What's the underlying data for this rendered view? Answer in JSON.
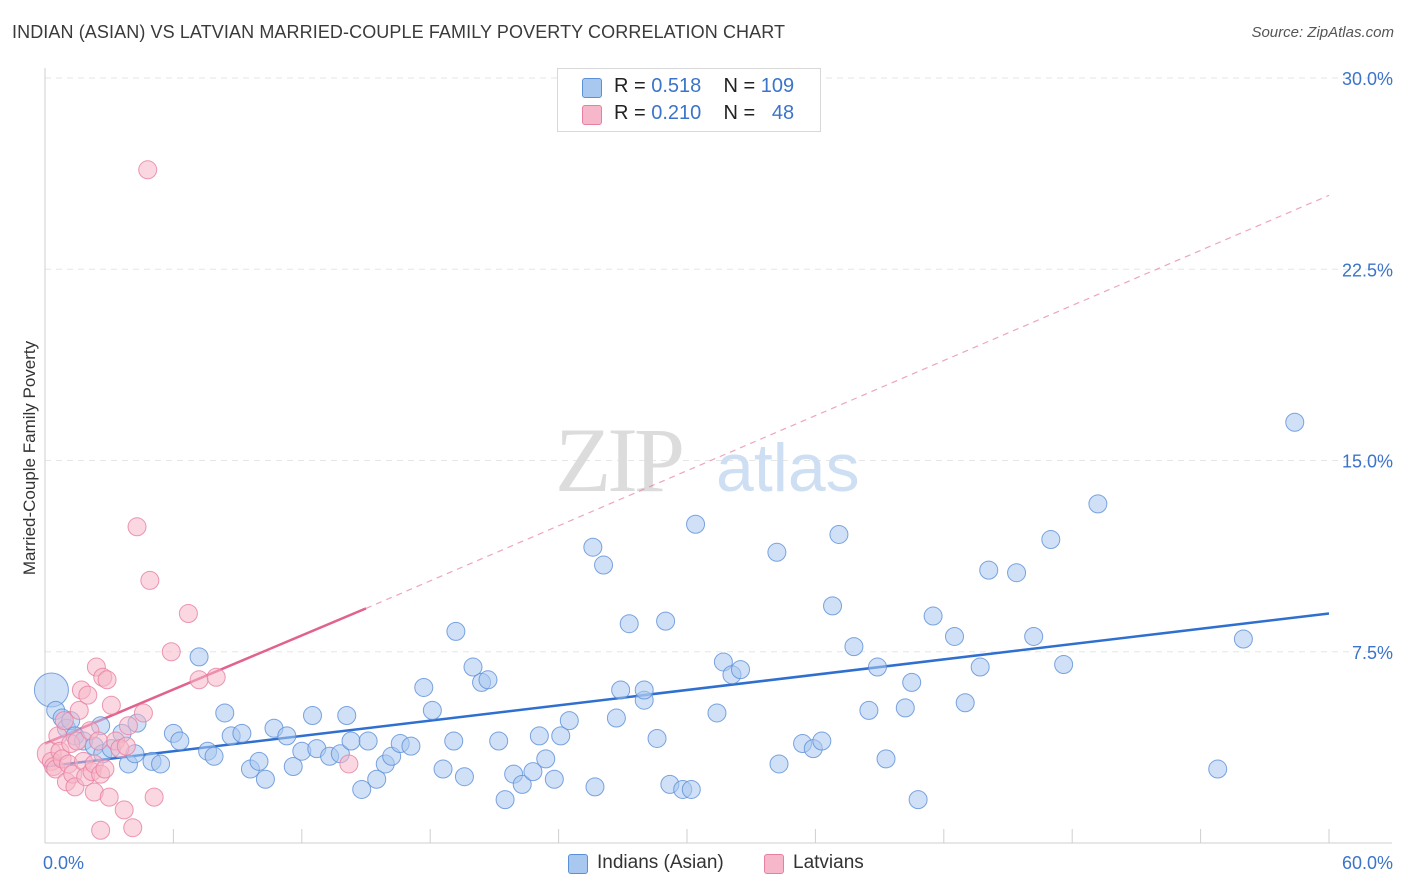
{
  "header": {
    "title": "INDIAN (ASIAN) VS LATVIAN MARRIED-COUPLE FAMILY POVERTY CORRELATION CHART",
    "source": "Source: ZipAtlas.com"
  },
  "watermark": {
    "zip": "ZIP",
    "atlas": "atlas"
  },
  "legend": {
    "rows": [
      {
        "r_label": "R =",
        "r_value": "0.518",
        "n_label": "N =",
        "n_value": "109"
      },
      {
        "r_label": "R =",
        "r_value": "0.210",
        "n_label": "N =",
        "n_value": "48"
      }
    ]
  },
  "bottom_legend": {
    "series1": "Indians (Asian)",
    "series2": "Latvians"
  },
  "colors": {
    "blue_fill": "#a9c8f0",
    "blue_stroke": "#5b8fd8",
    "blue_line": "#2f6fcf",
    "pink_fill": "#f5b7c9",
    "pink_stroke": "#e77fa0",
    "pink_line": "#e0628d",
    "axis_label": "#3b74c9",
    "grid": "#e6e6e6"
  },
  "chart_data": {
    "type": "scatter",
    "title": "INDIAN (ASIAN) VS LATVIAN MARRIED-COUPLE FAMILY POVERTY CORRELATION CHART",
    "xlabel": "",
    "ylabel": "Married-Couple Family Poverty",
    "xlim": [
      0,
      60
    ],
    "ylim": [
      0,
      30
    ],
    "x_tick_labels": [
      "0.0%",
      "60.0%"
    ],
    "y_tick_labels": [
      "7.5%",
      "15.0%",
      "22.5%",
      "30.0%"
    ],
    "y_ticks": [
      7.5,
      15,
      22.5,
      30
    ],
    "grid": true,
    "legend_position": "top-center",
    "series": [
      {
        "name": "Indians (Asian)",
        "r": 0.518,
        "n": 109,
        "trend": {
          "x": [
            0,
            60
          ],
          "y": [
            3.0,
            9.0
          ]
        },
        "points": [
          [
            0.3,
            6.0
          ],
          [
            0.5,
            5.2
          ],
          [
            0.8,
            4.9
          ],
          [
            1.0,
            4.5
          ],
          [
            1.2,
            4.8
          ],
          [
            1.4,
            4.2
          ],
          [
            1.8,
            4.0
          ],
          [
            2.3,
            3.8
          ],
          [
            2.6,
            4.6
          ],
          [
            2.7,
            3.5
          ],
          [
            3.1,
            3.7
          ],
          [
            3.6,
            4.3
          ],
          [
            3.9,
            3.1
          ],
          [
            4.2,
            3.5
          ],
          [
            4.3,
            4.7
          ],
          [
            5.0,
            3.2
          ],
          [
            5.4,
            3.1
          ],
          [
            6.0,
            4.3
          ],
          [
            6.3,
            4.0
          ],
          [
            7.2,
            7.3
          ],
          [
            7.6,
            3.6
          ],
          [
            7.9,
            3.4
          ],
          [
            8.4,
            5.1
          ],
          [
            8.7,
            4.2
          ],
          [
            9.2,
            4.3
          ],
          [
            9.6,
            2.9
          ],
          [
            10.0,
            3.2
          ],
          [
            10.3,
            2.5
          ],
          [
            10.7,
            4.5
          ],
          [
            11.3,
            4.2
          ],
          [
            11.6,
            3.0
          ],
          [
            12.0,
            3.6
          ],
          [
            12.5,
            5.0
          ],
          [
            12.7,
            3.7
          ],
          [
            13.3,
            3.4
          ],
          [
            13.8,
            3.5
          ],
          [
            14.1,
            5.0
          ],
          [
            14.3,
            4.0
          ],
          [
            14.8,
            2.1
          ],
          [
            15.1,
            4.0
          ],
          [
            15.5,
            2.5
          ],
          [
            15.9,
            3.1
          ],
          [
            16.2,
            3.4
          ],
          [
            16.6,
            3.9
          ],
          [
            17.1,
            3.8
          ],
          [
            17.7,
            6.1
          ],
          [
            18.1,
            5.2
          ],
          [
            18.6,
            2.9
          ],
          [
            19.1,
            4.0
          ],
          [
            19.2,
            8.3
          ],
          [
            19.6,
            2.6
          ],
          [
            20.0,
            6.9
          ],
          [
            20.4,
            6.3
          ],
          [
            20.7,
            6.4
          ],
          [
            21.2,
            4.0
          ],
          [
            21.5,
            1.7
          ],
          [
            21.9,
            2.7
          ],
          [
            22.3,
            2.3
          ],
          [
            22.8,
            2.8
          ],
          [
            23.1,
            4.2
          ],
          [
            23.4,
            3.3
          ],
          [
            23.8,
            2.5
          ],
          [
            24.1,
            4.2
          ],
          [
            24.5,
            4.8
          ],
          [
            25.6,
            11.6
          ],
          [
            25.7,
            2.2
          ],
          [
            26.1,
            10.9
          ],
          [
            26.7,
            4.9
          ],
          [
            26.9,
            6.0
          ],
          [
            27.3,
            8.6
          ],
          [
            28.0,
            5.6
          ],
          [
            28.0,
            6.0
          ],
          [
            28.6,
            4.1
          ],
          [
            29.0,
            8.7
          ],
          [
            29.2,
            2.3
          ],
          [
            29.8,
            2.1
          ],
          [
            30.2,
            2.1
          ],
          [
            30.4,
            12.5
          ],
          [
            31.4,
            5.1
          ],
          [
            31.7,
            7.1
          ],
          [
            32.1,
            6.6
          ],
          [
            32.5,
            6.8
          ],
          [
            34.2,
            11.4
          ],
          [
            34.3,
            3.1
          ],
          [
            35.4,
            3.9
          ],
          [
            35.9,
            3.7
          ],
          [
            36.3,
            4.0
          ],
          [
            36.8,
            9.3
          ],
          [
            37.1,
            12.1
          ],
          [
            37.8,
            7.7
          ],
          [
            38.5,
            5.2
          ],
          [
            38.9,
            6.9
          ],
          [
            39.3,
            3.3
          ],
          [
            40.2,
            5.3
          ],
          [
            40.5,
            6.3
          ],
          [
            40.8,
            1.7
          ],
          [
            41.5,
            8.9
          ],
          [
            42.5,
            8.1
          ],
          [
            43.0,
            5.5
          ],
          [
            43.7,
            6.9
          ],
          [
            44.1,
            10.7
          ],
          [
            45.4,
            10.6
          ],
          [
            46.2,
            8.1
          ],
          [
            47.0,
            11.9
          ],
          [
            47.6,
            7.0
          ],
          [
            49.2,
            13.3
          ],
          [
            54.8,
            2.9
          ],
          [
            56.0,
            8.0
          ],
          [
            58.4,
            16.5
          ]
        ]
      },
      {
        "name": "Latvians",
        "r": 0.21,
        "n": 48,
        "trend": {
          "x": [
            0,
            15
          ],
          "y": [
            3.9,
            9.2
          ],
          "dashed_extension": {
            "x": [
              15,
              60
            ],
            "y": [
              9.2,
              25.4
            ]
          }
        },
        "points": [
          [
            0.2,
            3.5
          ],
          [
            0.3,
            3.2
          ],
          [
            0.4,
            3.0
          ],
          [
            0.5,
            2.9
          ],
          [
            0.6,
            4.2
          ],
          [
            0.7,
            3.6
          ],
          [
            0.8,
            3.3
          ],
          [
            0.9,
            4.8
          ],
          [
            1.0,
            2.4
          ],
          [
            1.1,
            3.1
          ],
          [
            1.2,
            3.9
          ],
          [
            1.3,
            2.7
          ],
          [
            1.4,
            2.2
          ],
          [
            1.5,
            4.0
          ],
          [
            1.6,
            5.2
          ],
          [
            1.7,
            6.0
          ],
          [
            1.8,
            3.2
          ],
          [
            1.9,
            2.6
          ],
          [
            2.0,
            5.8
          ],
          [
            2.1,
            4.4
          ],
          [
            2.2,
            2.8
          ],
          [
            2.3,
            2.0
          ],
          [
            2.3,
            3.1
          ],
          [
            2.4,
            6.9
          ],
          [
            2.5,
            4.0
          ],
          [
            2.6,
            2.7
          ],
          [
            2.6,
            0.5
          ],
          [
            2.7,
            6.5
          ],
          [
            2.8,
            2.9
          ],
          [
            2.9,
            6.4
          ],
          [
            3.0,
            1.8
          ],
          [
            3.1,
            5.4
          ],
          [
            3.3,
            4.0
          ],
          [
            3.5,
            3.7
          ],
          [
            3.7,
            1.3
          ],
          [
            3.9,
            4.6
          ],
          [
            4.1,
            0.6
          ],
          [
            4.3,
            12.4
          ],
          [
            4.6,
            5.1
          ],
          [
            4.8,
            26.4
          ],
          [
            4.9,
            10.3
          ],
          [
            5.1,
            1.8
          ],
          [
            5.9,
            7.5
          ],
          [
            6.7,
            9.0
          ],
          [
            7.2,
            6.4
          ],
          [
            8.0,
            6.5
          ],
          [
            14.2,
            3.1
          ],
          [
            3.8,
            3.8
          ]
        ]
      }
    ]
  }
}
